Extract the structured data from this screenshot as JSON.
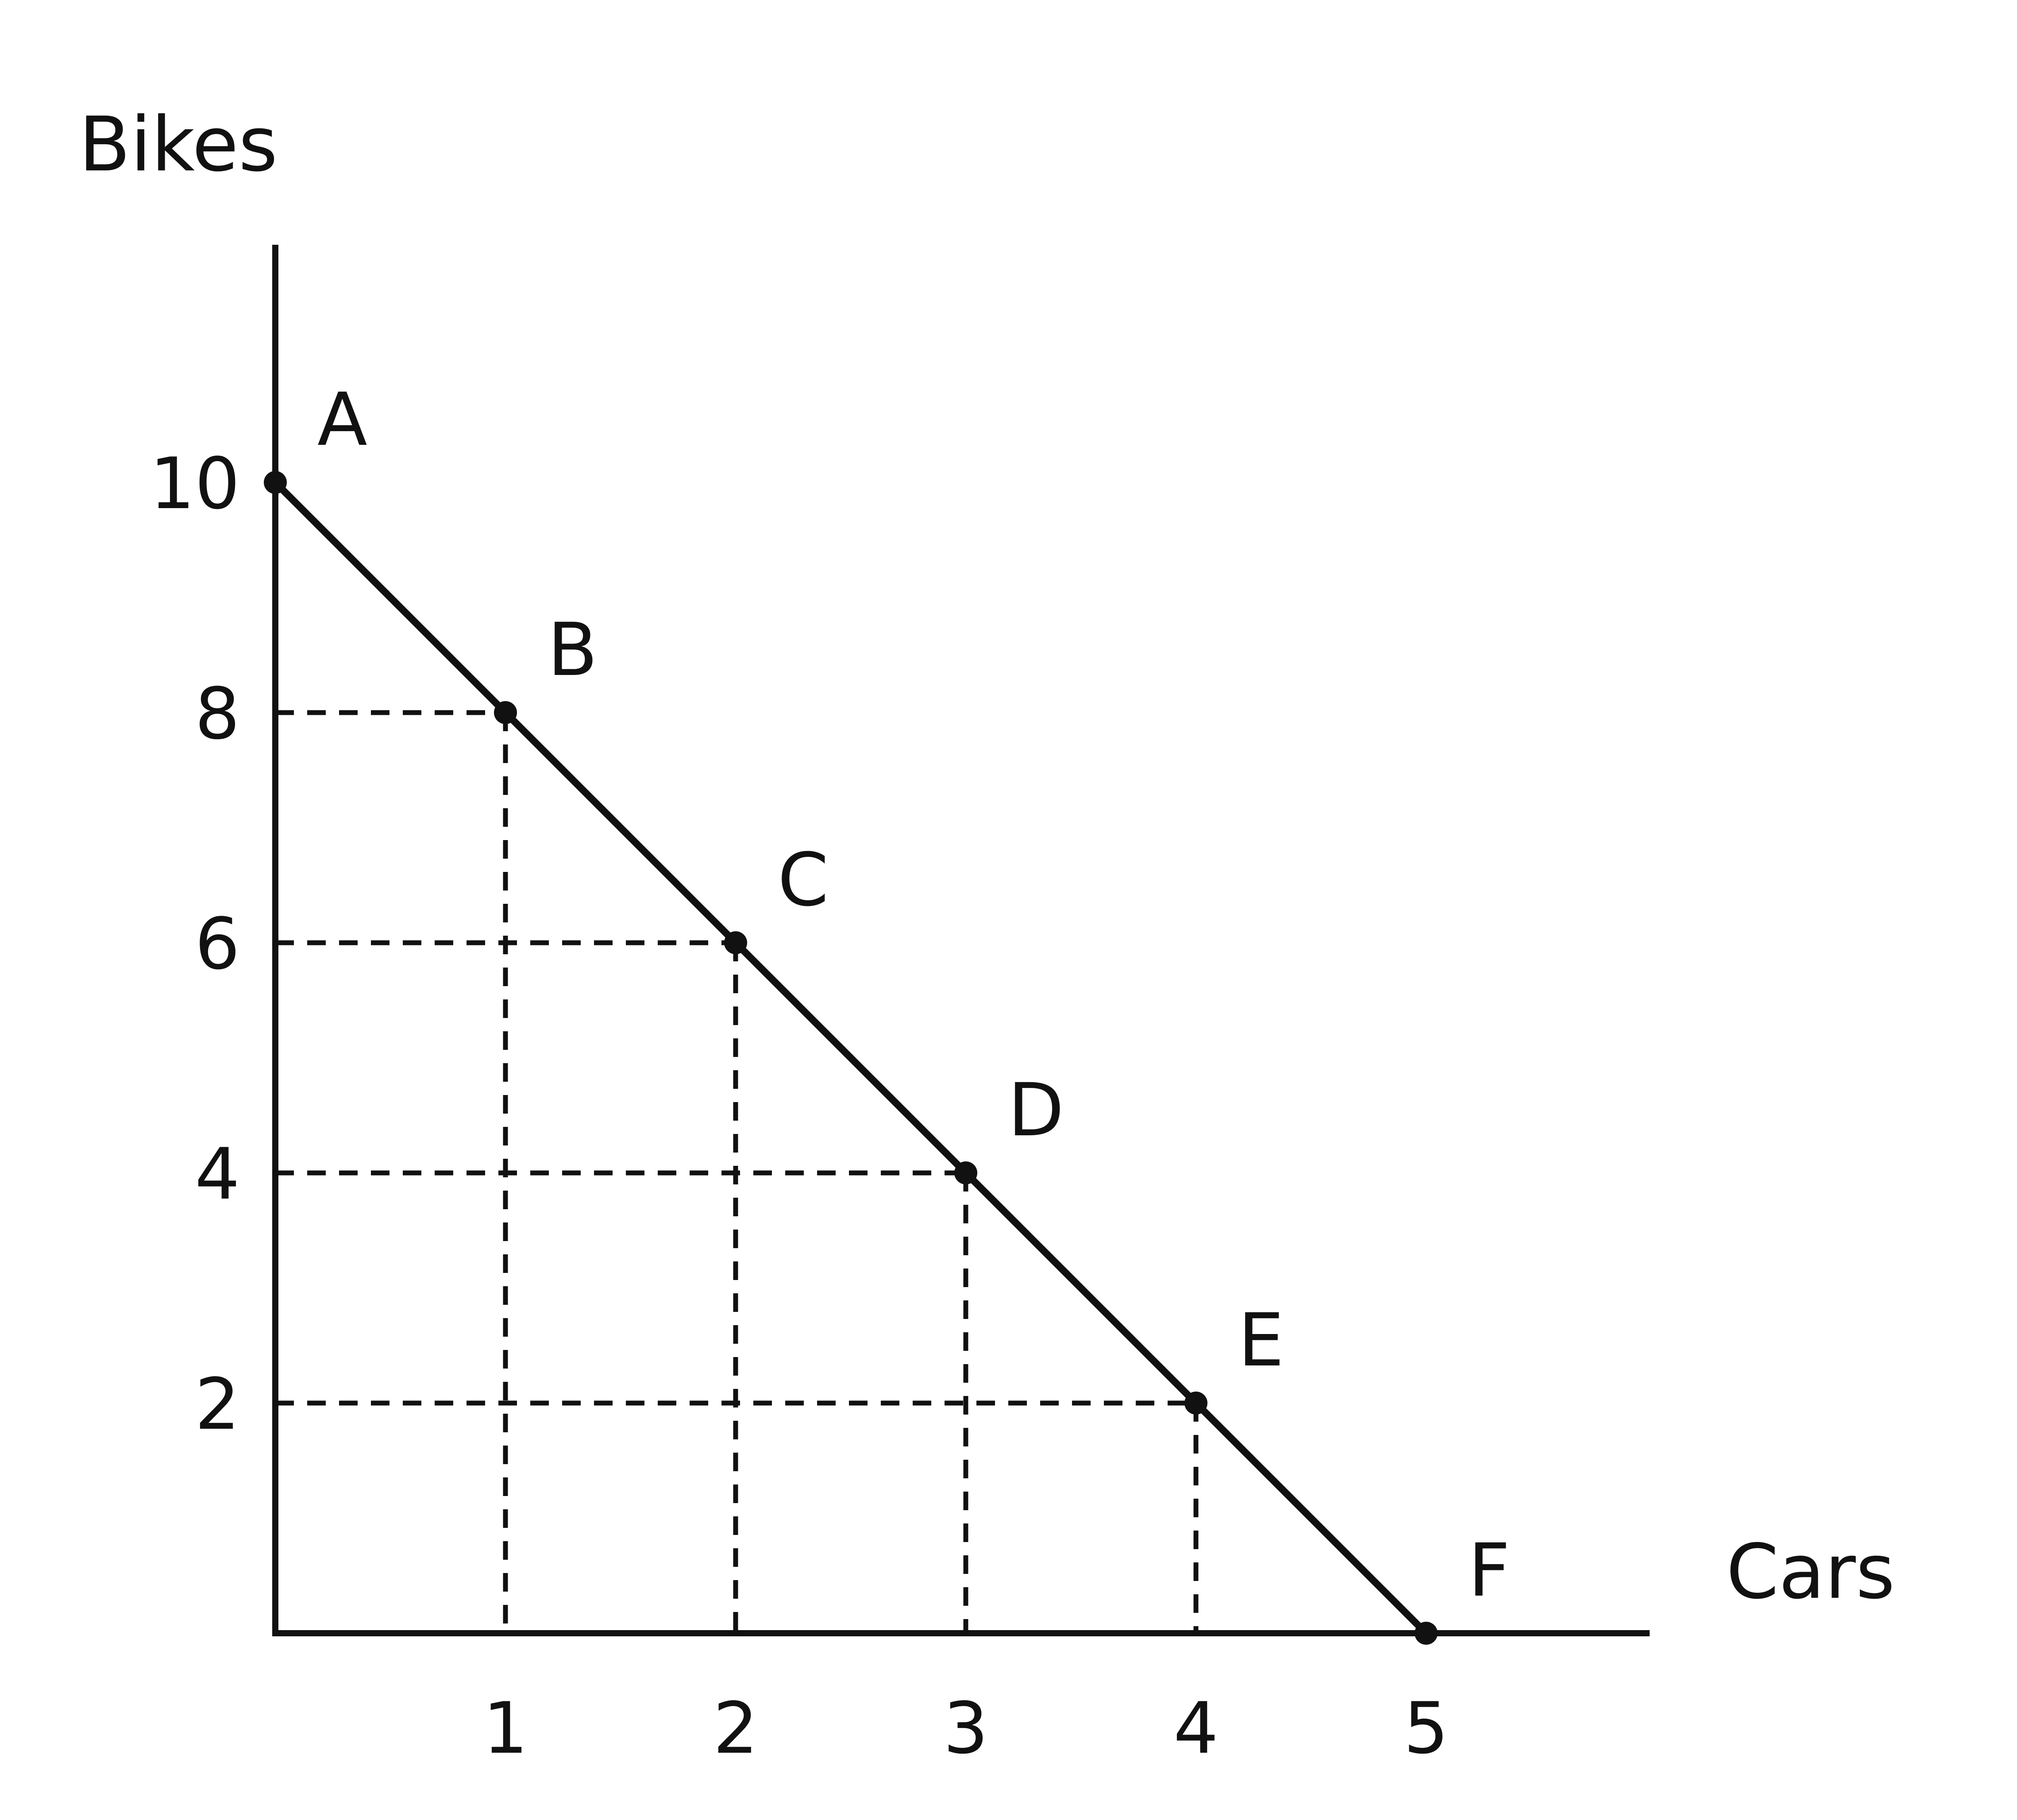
{
  "chart_data": {
    "type": "line",
    "xlabel": "Cars",
    "ylabel": "Bikes",
    "xlim": [
      0,
      6
    ],
    "ylim": [
      0,
      12
    ],
    "x_ticks": [
      "1",
      "2",
      "3",
      "4",
      "5"
    ],
    "y_ticks": [
      "2",
      "4",
      "6",
      "8",
      "10"
    ],
    "grid": false,
    "dashed_guides": true,
    "series": [
      {
        "points": [
          {
            "label": "A",
            "x": 0,
            "y": 10
          },
          {
            "label": "B",
            "x": 1,
            "y": 8
          },
          {
            "label": "C",
            "x": 2,
            "y": 6
          },
          {
            "label": "D",
            "x": 3,
            "y": 4
          },
          {
            "label": "E",
            "x": 4,
            "y": 2
          },
          {
            "label": "F",
            "x": 5,
            "y": 0
          }
        ]
      }
    ],
    "colors": {
      "line": "#111111",
      "background": "#ffffff"
    }
  }
}
